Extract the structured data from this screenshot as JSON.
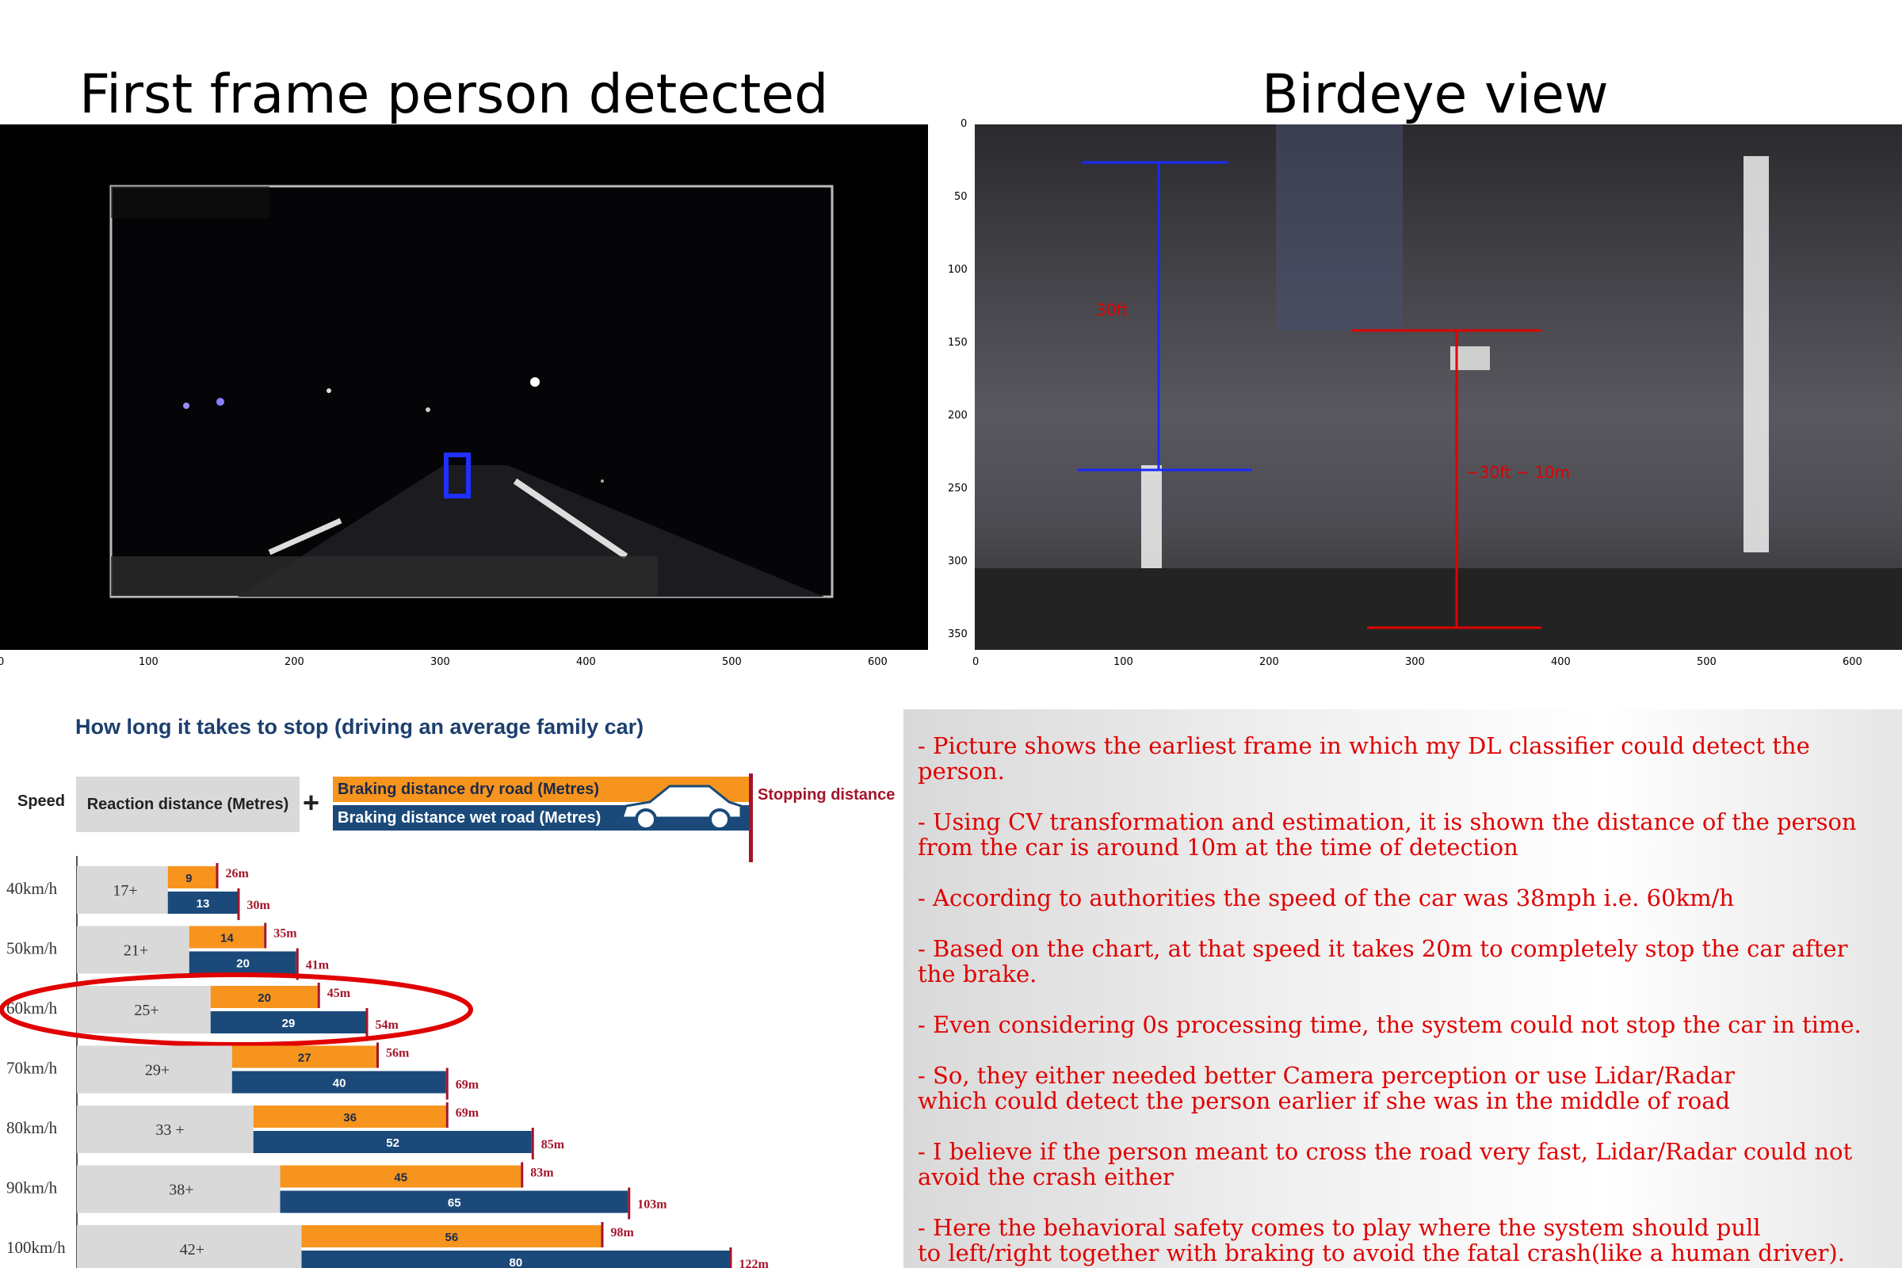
{
  "titles": {
    "left": "First frame person detected",
    "right": "Birdeye view"
  },
  "frame_axis": {
    "x_ticks": [
      "0",
      "100",
      "200",
      "300",
      "400",
      "500",
      "600"
    ]
  },
  "birdeye_axis": {
    "x_ticks": [
      "0",
      "100",
      "200",
      "300",
      "400",
      "500",
      "600"
    ],
    "y_ticks": [
      "0",
      "50",
      "100",
      "150",
      "200",
      "250",
      "300",
      "350"
    ],
    "annotation_blue": "30ft",
    "annotation_red": "~30ft ~ 10m"
  },
  "stop_chart": {
    "title": "How long it takes to stop (driving an average family car)",
    "legend": {
      "speed": "Speed",
      "reaction": "Reaction distance (Metres)",
      "plus": "+",
      "dry": "Braking distance dry road (Metres)",
      "wet": "Braking distance wet road (Metres)",
      "stopping": "Stopping distance"
    },
    "colors": {
      "dry": "#f7941d",
      "wet": "#1b4a7a",
      "reaction": "#d9d9d9",
      "stop_mark": "#a3152b"
    }
  },
  "chart_data": {
    "type": "bar",
    "title": "How long it takes to stop (driving an average family car)",
    "categories": [
      "40km/h",
      "50km/h",
      "60km/h",
      "70km/h",
      "80km/h",
      "90km/h",
      "100km/h"
    ],
    "reaction_labels": [
      "17+",
      "21+",
      "25+",
      "29+",
      "33 +",
      "38+",
      "42+"
    ],
    "reaction": [
      17,
      21,
      25,
      29,
      33,
      38,
      42
    ],
    "series": [
      {
        "name": "Braking distance dry road (Metres)",
        "values": [
          9,
          14,
          20,
          27,
          36,
          45,
          56
        ]
      },
      {
        "name": "Braking distance wet road (Metres)",
        "values": [
          13,
          20,
          29,
          40,
          52,
          65,
          80
        ]
      }
    ],
    "stop_dry_labels": [
      "26m",
      "35m",
      "45m",
      "56m",
      "69m",
      "83m",
      "98m"
    ],
    "stop_wet_labels": [
      "30m",
      "41m",
      "54m",
      "69m",
      "85m",
      "103m",
      "122m"
    ],
    "highlight": "60km/h"
  },
  "notes": [
    "- Picture shows the earliest frame in which my DL classifier could detect the person.",
    "- Using CV transformation and estimation, it is shown the distance of the person from the car is around 10m at the time of detection",
    "- According to authorities the speed of the car was 38mph i.e. 60km/h",
    "- Based on the chart, at that speed it takes 20m to completely stop the car after the brake.",
    "- Even considering 0s processing time, the system could not stop the car in time.",
    "- So, they either needed better Camera perception or use Lidar/Radar\nwhich could detect the person earlier if she was in the middle of road",
    "- I believe if the person meant to cross the road very fast, Lidar/Radar could not avoid the crash either",
    "- Here the behavioral safety comes to play where the system should pull\nto left/right together with braking to avoid the fatal crash(like a human driver).\nNot sure if any self driving car can do that!?"
  ]
}
